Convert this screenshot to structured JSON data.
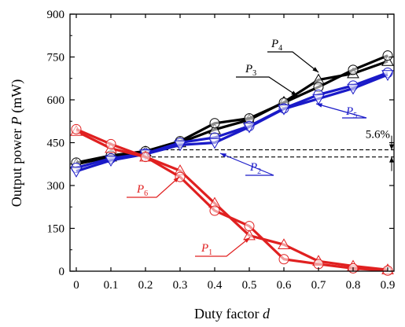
{
  "chart_data": {
    "type": "line",
    "xlabel_text": "Duty factor ",
    "xlabel_var": "d",
    "ylabel_text": "Output power ",
    "ylabel_var": "P",
    "ylabel_unit": " (mW)",
    "xlim": [
      0,
      0.9
    ],
    "ylim": [
      0,
      900
    ],
    "x_ticks": [
      "0",
      "0.1",
      "0.2",
      "0.3",
      "0.4",
      "0.5",
      "0.6",
      "0.7",
      "0.8",
      "0.9"
    ],
    "y_ticks": [
      "0",
      "150",
      "300",
      "450",
      "600",
      "750",
      "900"
    ],
    "x": [
      0,
      0.1,
      0.2,
      0.3,
      0.4,
      0.5,
      0.6,
      0.7,
      0.8,
      0.9
    ],
    "series": [
      {
        "name": "P4",
        "label_main": "P",
        "label_sub": "4",
        "color": "#000000",
        "marker": "triangle-up",
        "values": [
          375,
          400,
          418,
          450,
          496,
          530,
          592,
          670,
          692,
          735
        ]
      },
      {
        "name": "P3",
        "label_main": "P",
        "label_sub": "3",
        "color": "#000000",
        "marker": "circle",
        "values": [
          380,
          405,
          420,
          455,
          518,
          535,
          590,
          645,
          705,
          755
        ]
      },
      {
        "name": "P5",
        "label_main": "P",
        "label_sub": "5",
        "color": "#1a1ac8",
        "marker": "circle",
        "values": [
          362,
          395,
          412,
          450,
          468,
          508,
          570,
          618,
          650,
          695
        ]
      },
      {
        "name": "P2",
        "label_main": "P",
        "label_sub": "2",
        "color": "#1a1ac8",
        "marker": "triangle-down",
        "values": [
          350,
          388,
          410,
          442,
          450,
          505,
          568,
          604,
          640,
          688
        ]
      },
      {
        "name": "P6",
        "label_main": "P",
        "label_sub": "6",
        "color": "#e02020",
        "marker": "triangle-up",
        "values": [
          490,
          430,
          400,
          352,
          238,
          125,
          93,
          35,
          18,
          5
        ]
      },
      {
        "name": "P1",
        "label_main": "P",
        "label_sub": "1",
        "color": "#e02020",
        "marker": "circle",
        "values": [
          497,
          445,
          400,
          330,
          212,
          158,
          42,
          25,
          10,
          2
        ]
      }
    ],
    "reference_lines": [
      425,
      400
    ],
    "annotation": "5.6%"
  }
}
